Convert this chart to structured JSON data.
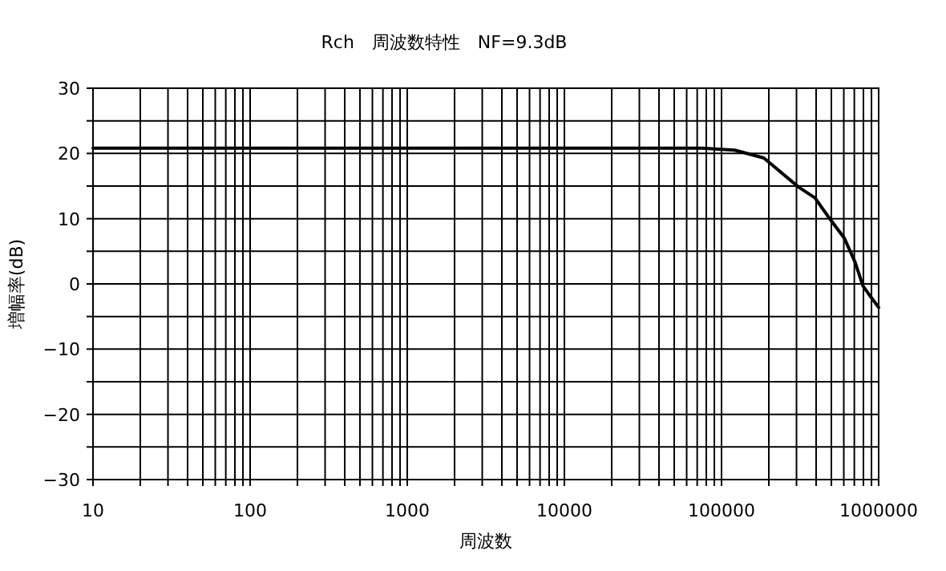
{
  "chart_data": {
    "type": "line",
    "title": "Rch　周波数特性　NF=9.3dB",
    "xlabel": "周波数",
    "ylabel": "増幅率(dB)",
    "log": "x",
    "grid": true,
    "marker": "none",
    "line_style": "solid",
    "xlim": [
      10,
      1000000
    ],
    "ylim": [
      -30,
      30
    ],
    "xticks": [
      10,
      {
        "value": 20,
        "label": null
      },
      {
        "value": 30,
        "label": null
      },
      {
        "value": 40,
        "label": null
      },
      {
        "value": 50,
        "label": null
      },
      {
        "value": 60,
        "label": null
      },
      {
        "value": 70,
        "label": null
      },
      {
        "value": 80,
        "label": null
      },
      {
        "value": 90,
        "label": null
      },
      100,
      {
        "value": 200,
        "label": null
      },
      {
        "value": 300,
        "label": null
      },
      {
        "value": 400,
        "label": null
      },
      {
        "value": 500,
        "label": null
      },
      {
        "value": 600,
        "label": null
      },
      {
        "value": 700,
        "label": null
      },
      {
        "value": 800,
        "label": null
      },
      {
        "value": 900,
        "label": null
      },
      1000,
      {
        "value": 2000,
        "label": null
      },
      {
        "value": 3000,
        "label": null
      },
      {
        "value": 4000,
        "label": null
      },
      {
        "value": 5000,
        "label": null
      },
      {
        "value": 6000,
        "label": null
      },
      {
        "value": 7000,
        "label": null
      },
      {
        "value": 8000,
        "label": null
      },
      {
        "value": 9000,
        "label": null
      },
      10000,
      {
        "value": 20000,
        "label": null
      },
      {
        "value": 30000,
        "label": null
      },
      {
        "value": 40000,
        "label": null
      },
      {
        "value": 50000,
        "label": null
      },
      {
        "value": 60000,
        "label": null
      },
      {
        "value": 70000,
        "label": null
      },
      {
        "value": 80000,
        "label": null
      },
      {
        "value": 90000,
        "label": null
      },
      100000,
      {
        "value": 200000,
        "label": null
      },
      {
        "value": 300000,
        "label": null
      },
      {
        "value": 400000,
        "label": null
      },
      {
        "value": 500000,
        "label": null
      },
      {
        "value": 600000,
        "label": null
      },
      {
        "value": 700000,
        "label": null
      },
      {
        "value": 800000,
        "label": null
      },
      {
        "value": 900000,
        "label": null
      },
      1000000
    ],
    "yticks": [
      -30,
      {
        "value": -25,
        "label": null
      },
      -20,
      {
        "value": -15,
        "label": null
      },
      -10,
      {
        "value": -5,
        "label": null
      },
      0,
      {
        "value": 5,
        "label": null
      },
      10,
      {
        "value": 15,
        "label": null
      },
      20,
      {
        "value": 25,
        "label": null
      },
      30
    ],
    "series": [
      {
        "color": "#000000",
        "x": [
          10,
          75500,
          121600,
          186000,
          311000,
          393000,
          478000,
          605000,
          706000,
          794000,
          861000,
          1000000
        ],
        "values": [
          20.8,
          20.8,
          20.5,
          19.3,
          14.8,
          13.2,
          10.3,
          7.0,
          3.4,
          -0.3,
          -1.5,
          -3.6
        ]
      }
    ]
  }
}
